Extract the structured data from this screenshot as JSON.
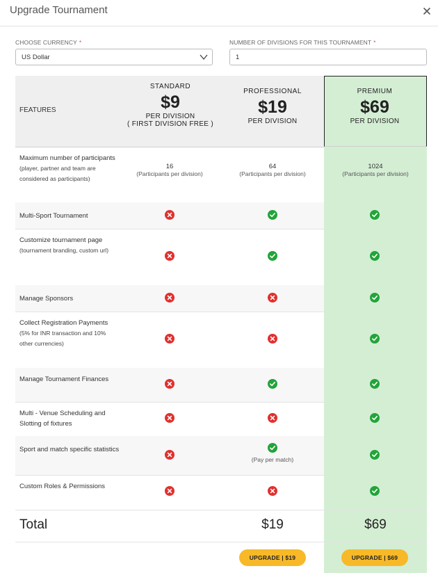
{
  "modal": {
    "title": "Upgrade Tournament"
  },
  "form": {
    "currency_label": "CHOOSE CURRENCY",
    "currency_value": "US Dollar",
    "divisions_label": "NUMBER OF DIVISIONS FOR THIS TOURNAMENT",
    "divisions_value": "1",
    "required_mark": "*"
  },
  "plans": [
    {
      "name": "STANDARD",
      "price": "$9",
      "per": "PER DIVISION",
      "note": "( FIRST DIVISION FREE )"
    },
    {
      "name": "PROFESSIONAL",
      "price": "$19",
      "per": "PER DIVISION"
    },
    {
      "name": "PREMIUM",
      "price": "$69",
      "per": "PER DIVISION"
    }
  ],
  "features_header": "FEATURES",
  "participants_row": {
    "label": "Maximum number of participants",
    "sub": "(player, partner and team are considered as participants)",
    "values": [
      "16",
      "64",
      "1024"
    ],
    "value_sub": "(Participants per division)"
  },
  "features": [
    {
      "label": "Multi-Sport Tournament",
      "sub": "",
      "standard": "no",
      "professional": "yes",
      "premium": "yes"
    },
    {
      "label": "Customize tournament page",
      "sub": "(tournament branding, custom url)",
      "standard": "no",
      "professional": "yes",
      "premium": "yes"
    },
    {
      "label": "Manage Sponsors",
      "sub": "",
      "standard": "no",
      "professional": "no",
      "premium": "yes"
    },
    {
      "label": "Collect Registration Payments",
      "sub": "(5% for INR transaction and 10% other currencies)",
      "standard": "no",
      "professional": "no",
      "premium": "yes"
    },
    {
      "label": "Manage Tournament Finances",
      "sub": "",
      "standard": "no",
      "professional": "yes",
      "premium": "yes"
    },
    {
      "label": "Multi - Venue Scheduling and Slotting of fixtures",
      "sub": "",
      "standard": "no",
      "professional": "no",
      "premium": "yes"
    },
    {
      "label": "Sport and match specific statistics",
      "sub": "",
      "standard": "no",
      "professional": "yes",
      "professional_note": "(Pay per match)",
      "premium": "yes"
    },
    {
      "label": "Custom Roles & Permissions",
      "sub": "",
      "standard": "no",
      "professional": "no",
      "premium": "yes"
    }
  ],
  "total": {
    "label": "Total",
    "professional": "$19",
    "premium": "$69"
  },
  "buttons": {
    "upgrade_professional": "UPGRADE | $19",
    "upgrade_premium": "UPGRADE | $69"
  },
  "colors": {
    "premium_bg": "#d4eed4",
    "yes": "#22a43a",
    "no": "#e0312f",
    "button": "#f7b928"
  },
  "icons": {
    "yes": "check-circle-icon",
    "no": "x-circle-icon",
    "close": "close-icon",
    "chevron": "chevron-down-icon"
  }
}
